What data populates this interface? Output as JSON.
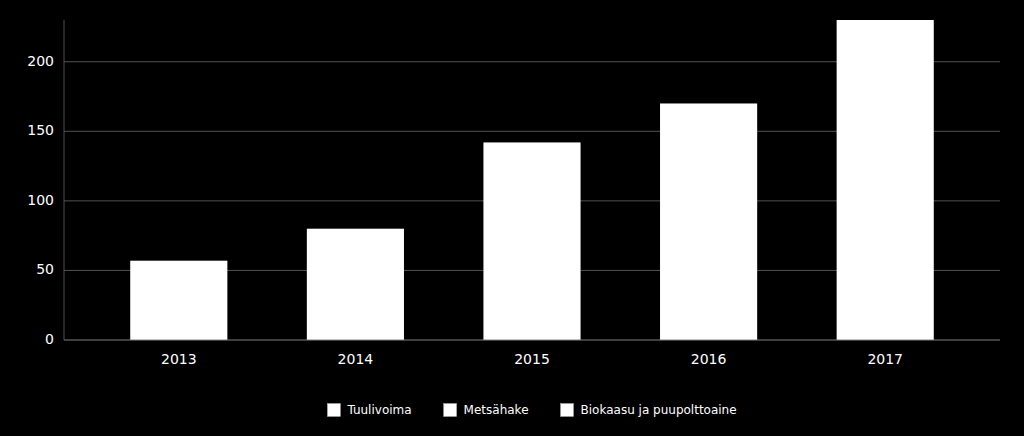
{
  "chart_data": {
    "type": "bar",
    "categories": [
      "2013",
      "2014",
      "2015",
      "2016",
      "2017"
    ],
    "values": [
      57,
      80,
      142,
      170,
      230
    ],
    "color": "#ffffff",
    "ylim": [
      0,
      230
    ],
    "yticks": [
      0,
      50,
      100,
      150,
      200
    ],
    "grid": true,
    "legend": "bottom",
    "annotations": [
      {
        "text": "Tuulivoima",
        "color": "#ffffff"
      },
      {
        "text": "Metsähake",
        "color": "#ffffff"
      },
      {
        "text": "Biokaasu ja puupolttoaine",
        "color": "#ffffff"
      }
    ]
  }
}
